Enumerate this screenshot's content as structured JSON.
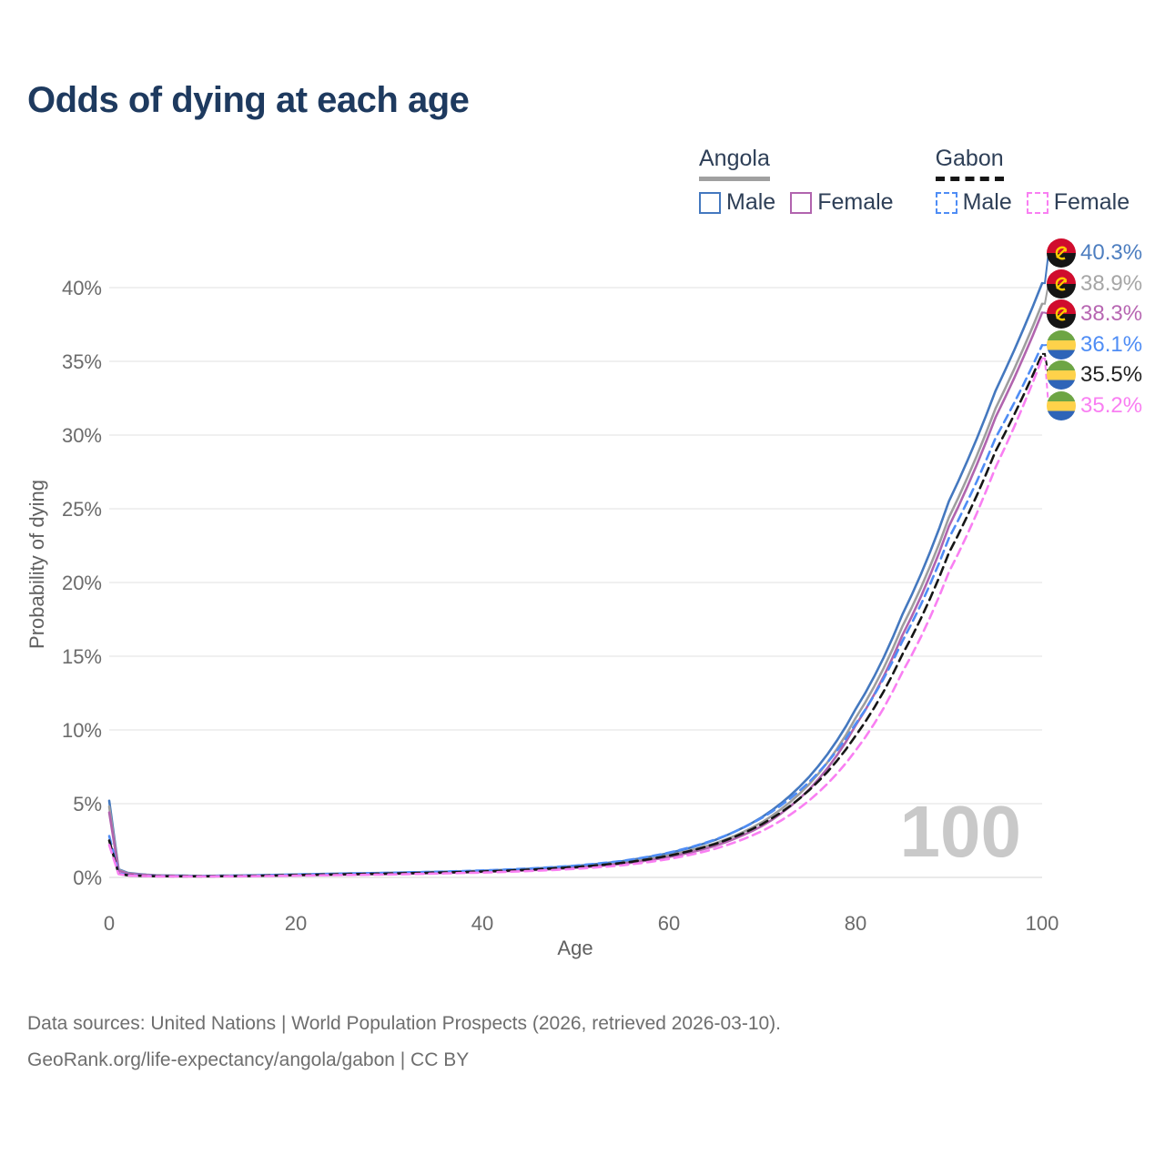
{
  "title": "Odds of dying at each age",
  "legend": {
    "groups": [
      {
        "name": "Angola",
        "line_style": "solid",
        "underline_color": "#a0a0a0",
        "items": [
          {
            "label": "Male",
            "color": "#4478bf"
          },
          {
            "label": "Female",
            "color": "#b164ae"
          }
        ]
      },
      {
        "name": "Gabon",
        "line_style": "dashed",
        "underline_color": "#161616",
        "items": [
          {
            "label": "Male",
            "color": "#4f8df5"
          },
          {
            "label": "Female",
            "color": "#f97ff2"
          }
        ]
      }
    ]
  },
  "chart_data": {
    "type": "line",
    "title": "Odds of dying at each age",
    "xlabel": "Age",
    "ylabel": "Probability of dying",
    "xlim": [
      0,
      100
    ],
    "ylim_percent": [
      0,
      42
    ],
    "x_ticks": [
      0,
      20,
      40,
      60,
      80,
      100
    ],
    "y_ticks": [
      0,
      5,
      10,
      15,
      20,
      25,
      30,
      35,
      40
    ],
    "y_tick_suffix": "%",
    "grid": "horizontal",
    "legend_position": "top-right",
    "watermark": "100",
    "x": [
      0,
      1,
      2,
      5,
      10,
      15,
      20,
      25,
      30,
      35,
      40,
      45,
      50,
      55,
      60,
      65,
      70,
      75,
      80,
      85,
      90,
      95,
      100
    ],
    "series": [
      {
        "id": "angola-male",
        "country": "Angola",
        "sex": "Male",
        "dash": "solid",
        "color": "#4478bf",
        "end_label": "40.3%",
        "values": [
          5.2,
          0.55,
          0.3,
          0.14,
          0.1,
          0.14,
          0.2,
          0.26,
          0.31,
          0.37,
          0.45,
          0.58,
          0.78,
          1.1,
          1.65,
          2.55,
          4.1,
          6.8,
          11.4,
          17.8,
          25.5,
          33.0,
          40.3
        ]
      },
      {
        "id": "angola-both",
        "country": "Angola",
        "sex": "Both",
        "dash": "solid",
        "color": "#9e9e9e",
        "end_label": "38.9%",
        "values": [
          4.8,
          0.5,
          0.27,
          0.13,
          0.09,
          0.12,
          0.17,
          0.22,
          0.27,
          0.33,
          0.41,
          0.53,
          0.71,
          1.0,
          1.5,
          2.32,
          3.75,
          6.3,
          10.8,
          17.0,
          24.4,
          31.8,
          38.9
        ]
      },
      {
        "id": "angola-female",
        "country": "Angola",
        "sex": "Female",
        "dash": "solid",
        "color": "#b164ae",
        "end_label": "38.3%",
        "values": [
          4.4,
          0.45,
          0.25,
          0.12,
          0.08,
          0.1,
          0.14,
          0.18,
          0.23,
          0.29,
          0.37,
          0.48,
          0.65,
          0.92,
          1.38,
          2.15,
          3.5,
          5.95,
          10.3,
          16.4,
          23.8,
          31.2,
          38.3
        ]
      },
      {
        "id": "gabon-male",
        "country": "Gabon",
        "sex": "Male",
        "dash": "dashed",
        "color": "#4f8df5",
        "end_label": "36.1%",
        "values": [
          2.8,
          0.28,
          0.16,
          0.09,
          0.08,
          0.12,
          0.19,
          0.25,
          0.31,
          0.38,
          0.47,
          0.6,
          0.8,
          1.12,
          1.68,
          2.58,
          4.05,
          6.45,
          10.4,
          16.0,
          23.0,
          29.8,
          36.1
        ]
      },
      {
        "id": "gabon-both",
        "country": "Gabon",
        "sex": "Both",
        "dash": "dashed",
        "color": "#161616",
        "end_label": "35.5%",
        "values": [
          2.5,
          0.25,
          0.14,
          0.08,
          0.07,
          0.1,
          0.16,
          0.21,
          0.26,
          0.32,
          0.4,
          0.52,
          0.7,
          0.98,
          1.47,
          2.28,
          3.62,
          5.9,
          9.6,
          15.1,
          22.0,
          28.9,
          35.5
        ]
      },
      {
        "id": "gabon-female",
        "country": "Gabon",
        "sex": "Female",
        "dash": "dashed",
        "color": "#f97ff2",
        "end_label": "35.2%",
        "values": [
          2.2,
          0.22,
          0.13,
          0.07,
          0.06,
          0.08,
          0.12,
          0.16,
          0.2,
          0.26,
          0.33,
          0.43,
          0.58,
          0.82,
          1.25,
          1.95,
          3.15,
          5.2,
          8.6,
          13.9,
          20.7,
          27.8,
          35.2
        ]
      }
    ]
  },
  "end_labels": [
    {
      "series": "angola-male",
      "flag": "angola",
      "text": "40.3%",
      "color": "#4d7ec0"
    },
    {
      "series": "angola-both",
      "flag": "angola",
      "text": "38.9%",
      "color": "#a6a6a6"
    },
    {
      "series": "angola-female",
      "flag": "angola",
      "text": "38.3%",
      "color": "#b766b2"
    },
    {
      "series": "gabon-male",
      "flag": "gabon",
      "text": "36.1%",
      "color": "#4f8df5"
    },
    {
      "series": "gabon-both",
      "flag": "gabon",
      "text": "35.5%",
      "color": "#222222"
    },
    {
      "series": "gabon-female",
      "flag": "gabon",
      "text": "35.2%",
      "color": "#f97ff2"
    }
  ],
  "flags": {
    "angola": {
      "red": "#d00c2d",
      "black": "#151515",
      "yellow": "#ffcb00"
    },
    "gabon": {
      "green": "#6da544",
      "yellow": "#ffd24a",
      "blue": "#2e64b8"
    }
  },
  "footer": {
    "line1": "Data sources: United Nations | World Population Prospects (2026, retrieved 2026-03-10).",
    "line2": "GeoRank.org/life-expectancy/angola/gabon | CC BY"
  }
}
